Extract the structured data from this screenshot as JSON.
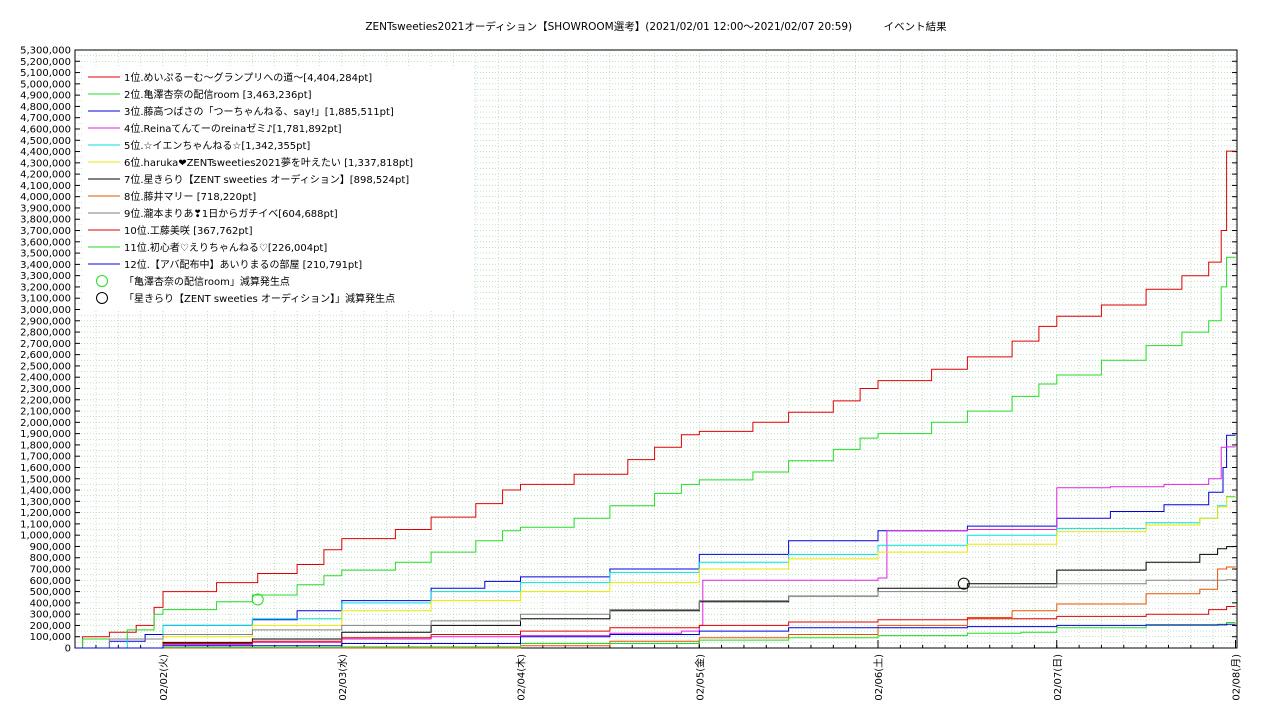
{
  "chart_data": {
    "type": "line",
    "title": "ZENTsweeties2021オーディション【SHOWROOM選考】(2021/02/01 12:00～2021/02/07 20:59)　　　イベント結果",
    "xlabel": "",
    "ylabel": "",
    "x_ticks": [
      "02/02(火)",
      "02/03(水)",
      "02/04(木)",
      "02/05(金)",
      "02/06(土)",
      "02/07(日)",
      "02/08(月)"
    ],
    "ylim": [
      0,
      5300000
    ],
    "y_ticks": [
      "0",
      "100,000",
      "200,000",
      "300,000",
      "400,000",
      "500,000",
      "600,000",
      "700,000",
      "800,000",
      "900,000",
      "1,000,000",
      "1,100,000",
      "1,200,000",
      "1,300,000",
      "1,400,000",
      "1,500,000",
      "1,600,000",
      "1,700,000",
      "1,800,000",
      "1,900,000",
      "2,000,000",
      "2,100,000",
      "2,200,000",
      "2,300,000",
      "2,400,000",
      "2,500,000",
      "2,600,000",
      "2,700,000",
      "2,800,000",
      "2,900,000",
      "3,000,000",
      "3,100,000",
      "3,200,000",
      "3,300,000",
      "3,400,000",
      "3,500,000",
      "3,600,000",
      "3,700,000",
      "3,800,000",
      "3,900,000",
      "4,000,000",
      "4,100,000",
      "4,200,000",
      "4,300,000",
      "4,400,000",
      "4,500,000",
      "4,600,000",
      "4,700,000",
      "4,800,000",
      "4,900,000",
      "5,000,000",
      "5,100,000",
      "5,200,000",
      "5,300,000"
    ],
    "grid": true,
    "legend_position": "top-left",
    "series": [
      {
        "name": "1位.めいぷるーむ～グランプリへの道～[4,404,284pt]",
        "color": "#e00000",
        "points": [
          [
            -0.5,
            0
          ],
          [
            -0.45,
            100000
          ],
          [
            -0.3,
            140000
          ],
          [
            -0.15,
            200000
          ],
          [
            -0.05,
            360000
          ],
          [
            0.0,
            500000
          ],
          [
            0.3,
            580000
          ],
          [
            0.53,
            660000
          ],
          [
            0.75,
            740000
          ],
          [
            0.9,
            870000
          ],
          [
            1.0,
            970000
          ],
          [
            1.3,
            1050000
          ],
          [
            1.5,
            1160000
          ],
          [
            1.75,
            1280000
          ],
          [
            1.9,
            1400000
          ],
          [
            2.0,
            1450000
          ],
          [
            2.3,
            1540000
          ],
          [
            2.6,
            1670000
          ],
          [
            2.75,
            1780000
          ],
          [
            2.9,
            1890000
          ],
          [
            3.0,
            1920000
          ],
          [
            3.3,
            2000000
          ],
          [
            3.5,
            2090000
          ],
          [
            3.75,
            2190000
          ],
          [
            3.9,
            2300000
          ],
          [
            4.0,
            2370000
          ],
          [
            4.3,
            2470000
          ],
          [
            4.5,
            2580000
          ],
          [
            4.75,
            2720000
          ],
          [
            4.9,
            2850000
          ],
          [
            5.0,
            2940000
          ],
          [
            5.25,
            3040000
          ],
          [
            5.5,
            3180000
          ],
          [
            5.7,
            3300000
          ],
          [
            5.85,
            3420000
          ],
          [
            5.92,
            3700000
          ],
          [
            5.95,
            4404284
          ],
          [
            6.0,
            4404284
          ]
        ]
      },
      {
        "name": "2位.亀澤杏奈の配信room [3,463,236pt]",
        "color": "#22dd22",
        "points": [
          [
            -0.5,
            0
          ],
          [
            -0.45,
            80000
          ],
          [
            -0.2,
            160000
          ],
          [
            -0.05,
            300000
          ],
          [
            0.0,
            340000
          ],
          [
            0.3,
            410000
          ],
          [
            0.5,
            470000
          ],
          [
            0.75,
            560000
          ],
          [
            0.9,
            640000
          ],
          [
            1.0,
            690000
          ],
          [
            1.3,
            760000
          ],
          [
            1.5,
            850000
          ],
          [
            1.75,
            950000
          ],
          [
            1.9,
            1040000
          ],
          [
            2.0,
            1070000
          ],
          [
            2.3,
            1150000
          ],
          [
            2.5,
            1260000
          ],
          [
            2.75,
            1370000
          ],
          [
            2.9,
            1450000
          ],
          [
            3.0,
            1490000
          ],
          [
            3.3,
            1560000
          ],
          [
            3.5,
            1660000
          ],
          [
            3.75,
            1760000
          ],
          [
            3.9,
            1860000
          ],
          [
            4.0,
            1900000
          ],
          [
            4.3,
            2000000
          ],
          [
            4.5,
            2100000
          ],
          [
            4.75,
            2230000
          ],
          [
            4.9,
            2340000
          ],
          [
            5.0,
            2420000
          ],
          [
            5.25,
            2550000
          ],
          [
            5.5,
            2680000
          ],
          [
            5.7,
            2800000
          ],
          [
            5.85,
            2900000
          ],
          [
            5.92,
            3200000
          ],
          [
            5.95,
            3463236
          ],
          [
            6.0,
            3463236
          ]
        ]
      },
      {
        "name": "3位.藤高つばさの「つーちゃんねる、say!」[1,885,511pt]",
        "color": "#0000dd",
        "points": [
          [
            -0.5,
            0
          ],
          [
            -0.3,
            60000
          ],
          [
            -0.1,
            120000
          ],
          [
            0.0,
            200000
          ],
          [
            0.5,
            250000
          ],
          [
            0.75,
            330000
          ],
          [
            1.0,
            420000
          ],
          [
            1.5,
            530000
          ],
          [
            1.8,
            590000
          ],
          [
            2.0,
            630000
          ],
          [
            2.5,
            700000
          ],
          [
            3.0,
            830000
          ],
          [
            3.5,
            950000
          ],
          [
            4.0,
            1040000
          ],
          [
            4.5,
            1080000
          ],
          [
            5.0,
            1150000
          ],
          [
            5.3,
            1210000
          ],
          [
            5.6,
            1270000
          ],
          [
            5.85,
            1380000
          ],
          [
            5.93,
            1600000
          ],
          [
            5.95,
            1885511
          ],
          [
            6.0,
            1885511
          ]
        ]
      },
      {
        "name": "4位.Reinaてんてーのreinaゼミ♪[1,781,892pt]",
        "color": "#e020e0",
        "points": [
          [
            -0.5,
            0
          ],
          [
            0.0,
            30000
          ],
          [
            0.5,
            50000
          ],
          [
            1.0,
            80000
          ],
          [
            1.5,
            100000
          ],
          [
            2.0,
            110000
          ],
          [
            2.5,
            130000
          ],
          [
            2.9,
            150000
          ],
          [
            3.0,
            200000
          ],
          [
            3.02,
            600000
          ],
          [
            3.5,
            600000
          ],
          [
            4.0,
            620000
          ],
          [
            4.05,
            1040000
          ],
          [
            4.5,
            1050000
          ],
          [
            5.0,
            1420000
          ],
          [
            5.3,
            1430000
          ],
          [
            5.6,
            1450000
          ],
          [
            5.85,
            1500000
          ],
          [
            5.92,
            1780000
          ],
          [
            5.95,
            1781892
          ],
          [
            6.0,
            1781892
          ]
        ]
      },
      {
        "name": "5位.☆イエンちゃんねる☆[1,342,355pt]",
        "color": "#00e0e0",
        "points": [
          [
            -0.5,
            0
          ],
          [
            -0.2,
            80000
          ],
          [
            0.0,
            200000
          ],
          [
            0.5,
            260000
          ],
          [
            1.0,
            400000
          ],
          [
            1.5,
            500000
          ],
          [
            2.0,
            580000
          ],
          [
            2.5,
            670000
          ],
          [
            3.0,
            760000
          ],
          [
            3.5,
            830000
          ],
          [
            4.0,
            910000
          ],
          [
            4.5,
            1000000
          ],
          [
            5.0,
            1060000
          ],
          [
            5.5,
            1110000
          ],
          [
            5.8,
            1150000
          ],
          [
            5.9,
            1260000
          ],
          [
            5.95,
            1342355
          ],
          [
            6.0,
            1342355
          ]
        ]
      },
      {
        "name": "6位.haruka❤ZENTsweeties2021夢を叶えたい [1,337,818pt]",
        "color": "#e8e800",
        "points": [
          [
            -0.5,
            0
          ],
          [
            0.0,
            100000
          ],
          [
            0.5,
            200000
          ],
          [
            1.0,
            330000
          ],
          [
            1.5,
            420000
          ],
          [
            2.0,
            500000
          ],
          [
            2.5,
            580000
          ],
          [
            3.0,
            700000
          ],
          [
            3.5,
            790000
          ],
          [
            4.0,
            850000
          ],
          [
            4.5,
            920000
          ],
          [
            5.0,
            1030000
          ],
          [
            5.5,
            1090000
          ],
          [
            5.8,
            1150000
          ],
          [
            5.9,
            1250000
          ],
          [
            5.95,
            1337818
          ],
          [
            6.0,
            1337818
          ]
        ]
      },
      {
        "name": "7位.星きらり【ZENT sweeties オーディション】[898,524pt]",
        "color": "#000000",
        "points": [
          [
            -0.5,
            0
          ],
          [
            0.0,
            50000
          ],
          [
            0.5,
            80000
          ],
          [
            1.0,
            140000
          ],
          [
            1.5,
            200000
          ],
          [
            2.0,
            260000
          ],
          [
            2.5,
            330000
          ],
          [
            3.0,
            410000
          ],
          [
            3.5,
            460000
          ],
          [
            4.0,
            530000
          ],
          [
            4.5,
            570000
          ],
          [
            5.0,
            690000
          ],
          [
            5.5,
            760000
          ],
          [
            5.8,
            830000
          ],
          [
            5.9,
            880000
          ],
          [
            5.95,
            898524
          ],
          [
            6.0,
            898524
          ]
        ]
      },
      {
        "name": "8位.藤井マリー [718,220pt]",
        "color": "#e85000",
        "points": [
          [
            -0.5,
            0
          ],
          [
            1.9,
            0
          ],
          [
            2.0,
            20000
          ],
          [
            2.5,
            60000
          ],
          [
            3.0,
            90000
          ],
          [
            3.5,
            120000
          ],
          [
            4.0,
            200000
          ],
          [
            4.5,
            270000
          ],
          [
            4.75,
            330000
          ],
          [
            5.0,
            390000
          ],
          [
            5.5,
            480000
          ],
          [
            5.8,
            520000
          ],
          [
            5.9,
            700000
          ],
          [
            5.95,
            718220
          ],
          [
            6.0,
            718220
          ]
        ]
      },
      {
        "name": "9位.瀧本まりあ❣1日からガチイベ[604,688pt]",
        "color": "#808080",
        "points": [
          [
            -0.5,
            0
          ],
          [
            -0.3,
            80000
          ],
          [
            0.0,
            120000
          ],
          [
            0.5,
            160000
          ],
          [
            1.0,
            200000
          ],
          [
            1.5,
            240000
          ],
          [
            2.0,
            300000
          ],
          [
            2.5,
            340000
          ],
          [
            3.0,
            420000
          ],
          [
            3.5,
            460000
          ],
          [
            4.0,
            500000
          ],
          [
            4.5,
            540000
          ],
          [
            5.0,
            570000
          ],
          [
            5.5,
            600000
          ],
          [
            5.95,
            604688
          ],
          [
            6.0,
            604688
          ]
        ]
      },
      {
        "name": "10位.工藤美咲 [367,762pt]",
        "color": "#e00000",
        "points": [
          [
            -0.5,
            0
          ],
          [
            0.0,
            40000
          ],
          [
            0.5,
            60000
          ],
          [
            1.0,
            90000
          ],
          [
            1.5,
            120000
          ],
          [
            2.0,
            150000
          ],
          [
            2.5,
            180000
          ],
          [
            3.0,
            200000
          ],
          [
            3.5,
            230000
          ],
          [
            4.0,
            250000
          ],
          [
            4.5,
            260000
          ],
          [
            5.0,
            280000
          ],
          [
            5.5,
            300000
          ],
          [
            5.85,
            340000
          ],
          [
            5.95,
            367762
          ],
          [
            6.0,
            367762
          ]
        ]
      },
      {
        "name": "11位.初心者♡えりちゃんねる♡[226,004pt]",
        "color": "#22dd22",
        "points": [
          [
            -0.5,
            0
          ],
          [
            0.0,
            5000
          ],
          [
            1.0,
            10000
          ],
          [
            2.0,
            40000
          ],
          [
            3.0,
            70000
          ],
          [
            3.5,
            90000
          ],
          [
            4.0,
            110000
          ],
          [
            4.5,
            130000
          ],
          [
            4.8,
            140000
          ],
          [
            5.0,
            180000
          ],
          [
            5.5,
            200000
          ],
          [
            5.9,
            210000
          ],
          [
            5.95,
            226004
          ],
          [
            6.0,
            226004
          ]
        ]
      },
      {
        "name": "12位.【アバ配布中】あいりまるの部屋 [210,791pt]",
        "color": "#0000dd",
        "points": [
          [
            -0.5,
            0
          ],
          [
            0.0,
            20000
          ],
          [
            1.0,
            40000
          ],
          [
            2.0,
            100000
          ],
          [
            2.5,
            120000
          ],
          [
            3.0,
            150000
          ],
          [
            3.5,
            180000
          ],
          [
            4.0,
            180000
          ],
          [
            4.5,
            190000
          ],
          [
            5.0,
            200000
          ],
          [
            5.5,
            205000
          ],
          [
            5.95,
            210791
          ],
          [
            6.0,
            210791
          ]
        ]
      }
    ],
    "markers": [
      {
        "label": "「亀澤杏奈の配信room」減算発生点",
        "color": "#22dd22",
        "x": 0.53,
        "y": 430000
      },
      {
        "label": "「星きらり【ZENT sweeties オーディション】」減算発生点",
        "color": "#000000",
        "x": 4.48,
        "y": 570000
      }
    ]
  }
}
